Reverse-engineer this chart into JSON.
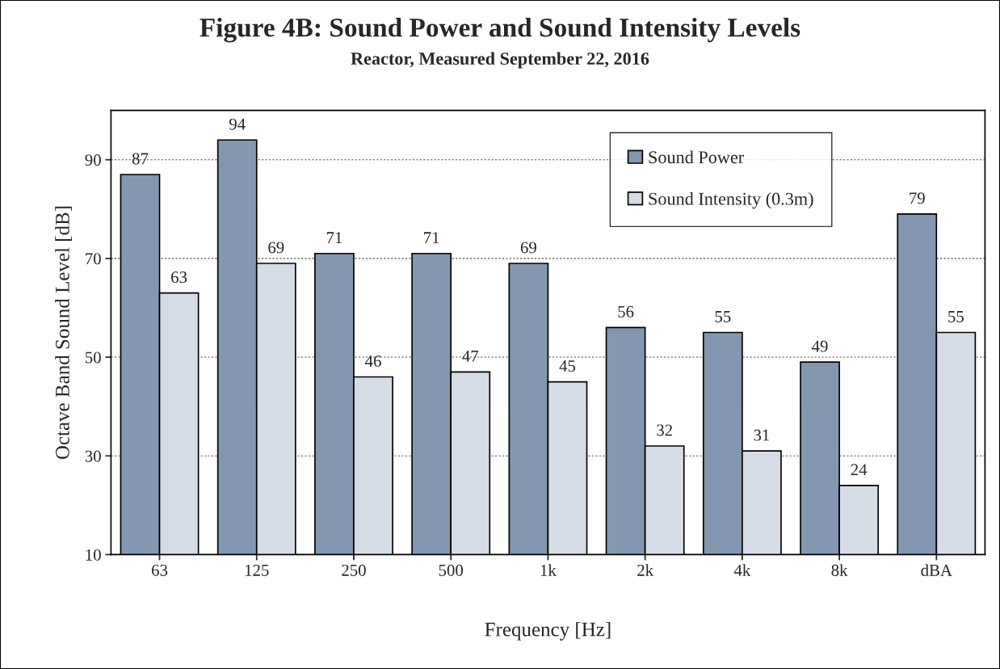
{
  "chart_data": {
    "type": "bar",
    "title": "Figure 4B: Sound Power and Sound Intensity Levels",
    "subtitle": "Reactor, Measured September 22, 2016",
    "xlabel": "Frequency [Hz]",
    "ylabel": "Octave Band Sound Level [dB]",
    "categories": [
      "63",
      "125",
      "250",
      "500",
      "1k",
      "2k",
      "4k",
      "8k",
      "dBA"
    ],
    "series": [
      {
        "name": "Sound Power",
        "color": "#8497b0",
        "values": [
          87,
          94,
          71,
          71,
          69,
          56,
          55,
          49,
          79
        ]
      },
      {
        "name": "Sound Intensity (0.3m)",
        "color": "#d6dce5",
        "values": [
          63,
          69,
          46,
          47,
          45,
          32,
          31,
          24,
          55
        ]
      }
    ],
    "ylim": [
      10,
      100
    ],
    "yticks": [
      10,
      30,
      50,
      70,
      90
    ],
    "grid": "y",
    "legend": "top right",
    "data_labels": true
  }
}
